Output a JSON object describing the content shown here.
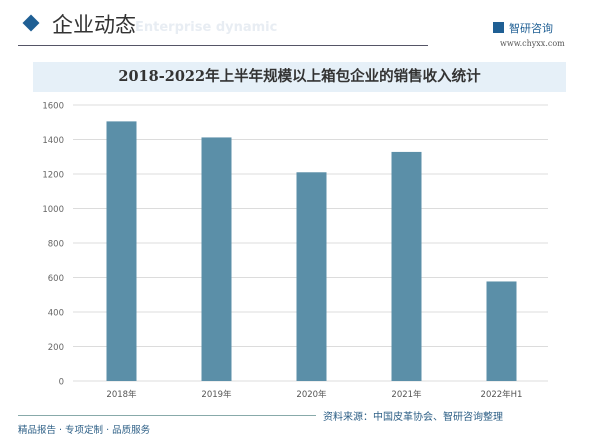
{
  "header": {
    "title": "企业动态",
    "subtitle": "Enterprise dynamic",
    "brand": "智研咨询",
    "url": "www.chyxx.com"
  },
  "footer": {
    "tagline": "精品报告 · 专项定制 · 品质服务",
    "source": "资料来源：中国皮革协会、智研咨询整理"
  },
  "colors": {
    "bar": "#5b8fa8",
    "accent": "#1f5f94",
    "title_bg": "#e6f0f8"
  },
  "chart_data": {
    "type": "bar",
    "title": "2018-2022年上半年规模以上箱包企业的销售收入统计",
    "categories": [
      "2018年",
      "2019年",
      "2020年",
      "2021年",
      "2022年H1"
    ],
    "values": [
      1505,
      1412,
      1210,
      1328,
      577
    ],
    "ylim": [
      0,
      1600
    ],
    "yticks": [
      0,
      200,
      400,
      600,
      800,
      1000,
      1200,
      1400,
      1600
    ],
    "xlabel": "",
    "ylabel": "",
    "grid": true
  }
}
